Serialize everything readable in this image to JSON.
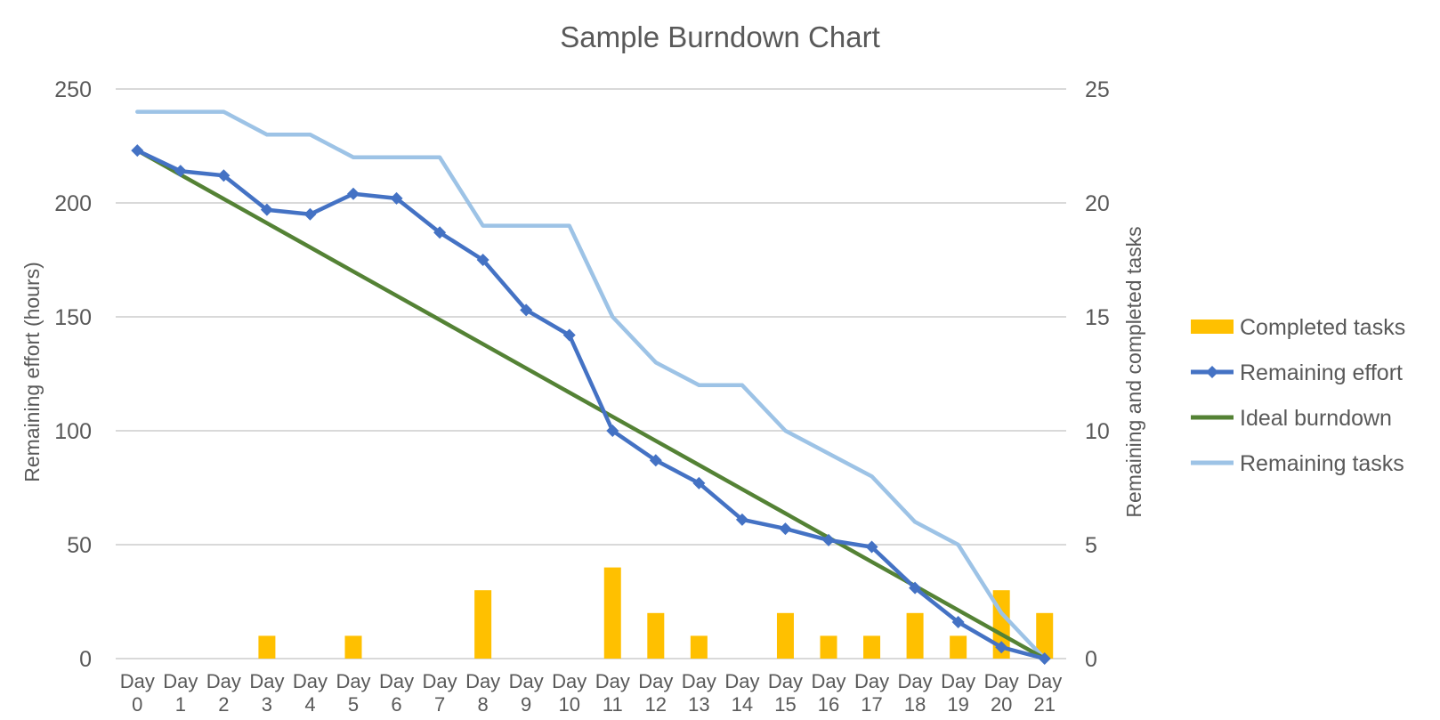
{
  "chart_data": {
    "type": "bar+line",
    "title": "Sample Burndown Chart",
    "categories": [
      [
        "Day",
        "0"
      ],
      [
        "Day",
        "1"
      ],
      [
        "Day",
        "2"
      ],
      [
        "Day",
        "3"
      ],
      [
        "Day",
        "4"
      ],
      [
        "Day",
        "5"
      ],
      [
        "Day",
        "6"
      ],
      [
        "Day",
        "7"
      ],
      [
        "Day",
        "8"
      ],
      [
        "Day",
        "9"
      ],
      [
        "Day",
        "10"
      ],
      [
        "Day",
        "11"
      ],
      [
        "Day",
        "12"
      ],
      [
        "Day",
        "13"
      ],
      [
        "Day",
        "14"
      ],
      [
        "Day",
        "15"
      ],
      [
        "Day",
        "16"
      ],
      [
        "Day",
        "17"
      ],
      [
        "Day",
        "18"
      ],
      [
        "Day",
        "19"
      ],
      [
        "Day",
        "20"
      ],
      [
        "Day",
        "21"
      ]
    ],
    "ylabel_left": "Remaining effort (hours)",
    "ylabel_right": "Remaining and completed tasks",
    "ylim_left": [
      0,
      250
    ],
    "yticks_left": [
      "0",
      "50",
      "100",
      "150",
      "200",
      "250"
    ],
    "ylim_right": [
      0,
      25
    ],
    "yticks_right": [
      "0",
      "5",
      "10",
      "15",
      "20",
      "25"
    ],
    "grid": true,
    "legend_position": "right",
    "series": [
      {
        "name": "Completed tasks",
        "kind": "bar",
        "axis": "right",
        "color": "#FFC000",
        "values": [
          0,
          0,
          0,
          1,
          0,
          1,
          0,
          0,
          3,
          0,
          0,
          4,
          2,
          1,
          0,
          2,
          1,
          1,
          2,
          1,
          3,
          2
        ]
      },
      {
        "name": "Remaining effort",
        "kind": "line-marker",
        "axis": "left",
        "color": "#4472C4",
        "values": [
          223,
          214,
          212,
          197,
          195,
          204,
          202,
          187,
          175,
          153,
          142,
          100,
          87,
          77,
          61,
          57,
          52,
          49,
          31,
          16,
          5,
          0
        ]
      },
      {
        "name": "Ideal burndown",
        "kind": "line",
        "axis": "left",
        "color": "#548235",
        "values": [
          223,
          212.38,
          201.76,
          191.14,
          180.52,
          169.9,
          159.29,
          148.67,
          138.05,
          127.43,
          116.81,
          106.19,
          95.57,
          84.95,
          74.33,
          63.71,
          53.1,
          42.48,
          31.86,
          21.24,
          10.62,
          0
        ]
      },
      {
        "name": "Remaining tasks",
        "kind": "line",
        "axis": "right",
        "color": "#9DC3E6",
        "values": [
          24,
          24,
          24,
          23,
          23,
          22,
          22,
          22,
          19,
          19,
          19,
          15,
          13,
          12,
          12,
          10,
          9,
          8,
          6,
          5,
          2,
          0
        ]
      }
    ]
  }
}
